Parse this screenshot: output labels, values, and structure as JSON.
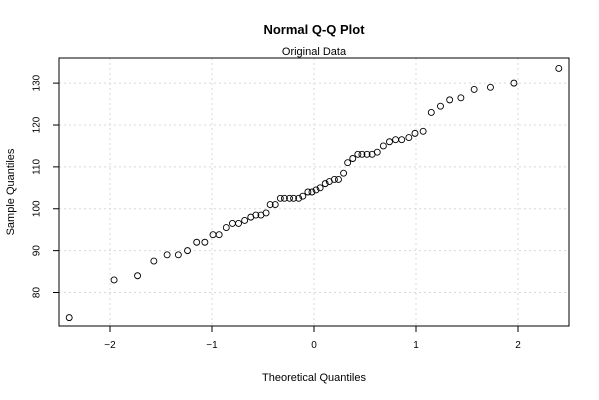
{
  "chart_data": {
    "type": "scatter",
    "title": "Normal Q-Q Plot",
    "subtitle": "Original Data",
    "xlabel": "Theoretical Quantiles",
    "ylabel": "Sample Quantiles",
    "xlim": [
      -2.5,
      2.5
    ],
    "ylim": [
      72,
      136
    ],
    "xticks": [
      -2,
      -1,
      0,
      1,
      2
    ],
    "yticks": [
      80,
      90,
      100,
      110,
      120,
      130
    ],
    "grid": true,
    "points": [
      [
        -2.4,
        74
      ],
      [
        -1.96,
        83
      ],
      [
        -1.73,
        84
      ],
      [
        -1.57,
        87.5
      ],
      [
        -1.44,
        89
      ],
      [
        -1.33,
        89
      ],
      [
        -1.24,
        90
      ],
      [
        -1.15,
        92
      ],
      [
        -1.07,
        92
      ],
      [
        -0.99,
        93.8
      ],
      [
        -0.93,
        93.8
      ],
      [
        -0.86,
        95.5
      ],
      [
        -0.8,
        96.5
      ],
      [
        -0.74,
        96.5
      ],
      [
        -0.68,
        97.2
      ],
      [
        -0.62,
        98
      ],
      [
        -0.57,
        98.5
      ],
      [
        -0.52,
        98.5
      ],
      [
        -0.47,
        99
      ],
      [
        -0.43,
        101
      ],
      [
        -0.38,
        101
      ],
      [
        -0.33,
        102.5
      ],
      [
        -0.29,
        102.5
      ],
      [
        -0.24,
        102.5
      ],
      [
        -0.2,
        102.5
      ],
      [
        -0.15,
        102.5
      ],
      [
        -0.11,
        103
      ],
      [
        -0.06,
        104
      ],
      [
        -0.02,
        104
      ],
      [
        0.02,
        104.5
      ],
      [
        0.06,
        105
      ],
      [
        0.11,
        106
      ],
      [
        0.15,
        106.5
      ],
      [
        0.2,
        107
      ],
      [
        0.24,
        107
      ],
      [
        0.29,
        108.5
      ],
      [
        0.33,
        111
      ],
      [
        0.38,
        112
      ],
      [
        0.43,
        113
      ],
      [
        0.47,
        113
      ],
      [
        0.52,
        113
      ],
      [
        0.57,
        113
      ],
      [
        0.62,
        113.5
      ],
      [
        0.68,
        115
      ],
      [
        0.74,
        116
      ],
      [
        0.8,
        116.5
      ],
      [
        0.86,
        116.5
      ],
      [
        0.93,
        117
      ],
      [
        0.99,
        118
      ],
      [
        1.07,
        118.5
      ],
      [
        1.15,
        123
      ],
      [
        1.24,
        124.5
      ],
      [
        1.33,
        126
      ],
      [
        1.44,
        126.5
      ],
      [
        1.57,
        128.5
      ],
      [
        1.73,
        129
      ],
      [
        1.96,
        130
      ],
      [
        2.4,
        133.5
      ]
    ]
  }
}
